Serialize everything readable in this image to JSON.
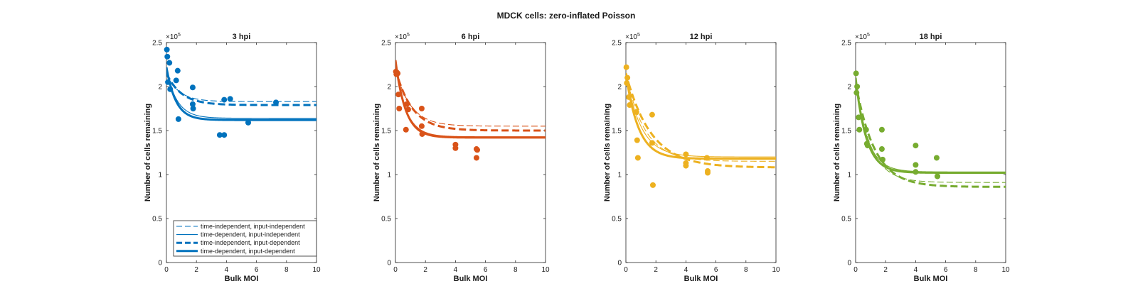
{
  "figure": {
    "title": "MDCK cells: zero-inflated Poisson",
    "exponent_label": "×10",
    "exponent_power": "5"
  },
  "legend": {
    "location": "inside lower-left of first panel",
    "entries": [
      {
        "label": "time-independent, input-independent",
        "style": "thin-dashed"
      },
      {
        "label": "time-dependent, input-independent",
        "style": "thin-solid"
      },
      {
        "label": "time-independent, input-dependent",
        "style": "thick-dashed"
      },
      {
        "label": "time-dependent, input-dependent",
        "style": "thick-solid"
      }
    ]
  },
  "chart_data": [
    {
      "type": "scatter",
      "title": "3 hpi",
      "xlabel": "Bulk MOI",
      "ylabel": "Number of cells remaining",
      "xlim": [
        0,
        10
      ],
      "ylim": [
        0,
        2.5
      ],
      "y_multiplier": "1e5",
      "xticks": [
        0,
        2,
        4,
        6,
        8,
        10
      ],
      "yticks": [
        0,
        0.5,
        1,
        1.5,
        2,
        2.5
      ],
      "grid": false,
      "color": "#0072BD",
      "points": [
        [
          0.03,
          2.42
        ],
        [
          0.06,
          2.34
        ],
        [
          0.1,
          2.05
        ],
        [
          0.2,
          2.27
        ],
        [
          0.25,
          1.97
        ],
        [
          0.65,
          2.07
        ],
        [
          0.75,
          2.18
        ],
        [
          0.8,
          1.63
        ],
        [
          1.75,
          1.99
        ],
        [
          1.75,
          1.8
        ],
        [
          1.78,
          1.75
        ],
        [
          3.55,
          1.45
        ],
        [
          3.85,
          1.45
        ],
        [
          3.85,
          1.85
        ],
        [
          4.25,
          1.86
        ],
        [
          5.45,
          1.59
        ],
        [
          7.3,
          1.82
        ]
      ],
      "series": [
        {
          "name": "time-independent, input-independent",
          "style": "thin-dashed",
          "y0": 2.15,
          "yinf": 1.83,
          "k": 1.2
        },
        {
          "name": "time-dependent, input-independent",
          "style": "thin-solid",
          "y0": 2.19,
          "yinf": 1.64,
          "k": 1.4
        },
        {
          "name": "time-independent, input-dependent",
          "style": "thick-dashed",
          "y0": 2.15,
          "yinf": 1.79,
          "k": 1.0
        },
        {
          "name": "time-dependent, input-dependent",
          "style": "thick-solid",
          "y0": 2.22,
          "yinf": 1.62,
          "k": 1.6
        }
      ]
    },
    {
      "type": "scatter",
      "title": "6 hpi",
      "xlabel": "Bulk MOI",
      "ylabel": "Number of cells remaining",
      "xlim": [
        0,
        10
      ],
      "ylim": [
        0,
        2.5
      ],
      "y_multiplier": "1e5",
      "xticks": [
        0,
        2,
        4,
        6,
        8,
        10
      ],
      "yticks": [
        0,
        0.5,
        1,
        1.5,
        2,
        2.5
      ],
      "grid": false,
      "color": "#D95319",
      "points": [
        [
          0.03,
          2.17
        ],
        [
          0.06,
          2.14
        ],
        [
          0.1,
          2.16
        ],
        [
          0.15,
          2.15
        ],
        [
          0.2,
          1.91
        ],
        [
          0.25,
          1.75
        ],
        [
          0.7,
          1.51
        ],
        [
          0.75,
          1.8
        ],
        [
          0.85,
          1.74
        ],
        [
          1.75,
          1.75
        ],
        [
          1.75,
          1.55
        ],
        [
          1.78,
          1.46
        ],
        [
          4.0,
          1.34
        ],
        [
          4.0,
          1.3
        ],
        [
          5.4,
          1.29
        ],
        [
          5.4,
          1.19
        ],
        [
          5.45,
          1.28
        ]
      ],
      "series": [
        {
          "name": "time-independent, input-independent",
          "style": "thin-dashed",
          "y0": 2.2,
          "yinf": 1.55,
          "k": 1.0
        },
        {
          "name": "time-dependent, input-independent",
          "style": "thin-solid",
          "y0": 2.25,
          "yinf": 1.43,
          "k": 1.4
        },
        {
          "name": "time-independent, input-dependent",
          "style": "thick-dashed",
          "y0": 2.2,
          "yinf": 1.5,
          "k": 0.9
        },
        {
          "name": "time-dependent, input-dependent",
          "style": "thick-solid",
          "y0": 2.3,
          "yinf": 1.42,
          "k": 1.5
        }
      ]
    },
    {
      "type": "scatter",
      "title": "12 hpi",
      "xlabel": "Bulk MOI",
      "ylabel": "Number of cells remaining",
      "xlim": [
        0,
        10
      ],
      "ylim": [
        0,
        2.5
      ],
      "y_multiplier": "1e5",
      "xticks": [
        0,
        2,
        4,
        6,
        8,
        10
      ],
      "yticks": [
        0,
        0.5,
        1,
        1.5,
        2,
        2.5
      ],
      "grid": false,
      "color": "#EDB120",
      "points": [
        [
          0.03,
          2.22
        ],
        [
          0.06,
          2.04
        ],
        [
          0.1,
          2.1
        ],
        [
          0.2,
          1.88
        ],
        [
          0.25,
          1.79
        ],
        [
          0.7,
          1.71
        ],
        [
          0.75,
          1.39
        ],
        [
          0.8,
          1.19
        ],
        [
          1.75,
          1.68
        ],
        [
          1.75,
          1.36
        ],
        [
          1.8,
          0.88
        ],
        [
          4.0,
          1.23
        ],
        [
          4.0,
          1.13
        ],
        [
          4.0,
          1.1
        ],
        [
          5.4,
          1.19
        ],
        [
          5.45,
          1.04
        ],
        [
          5.45,
          1.02
        ]
      ],
      "series": [
        {
          "name": "time-independent, input-independent",
          "style": "thin-dashed",
          "y0": 2.15,
          "yinf": 1.15,
          "k": 0.8
        },
        {
          "name": "time-dependent, input-independent",
          "style": "thin-solid",
          "y0": 2.15,
          "yinf": 1.2,
          "k": 1.0
        },
        {
          "name": "time-independent, input-dependent",
          "style": "thick-dashed",
          "y0": 2.15,
          "yinf": 1.08,
          "k": 0.6
        },
        {
          "name": "time-dependent, input-dependent",
          "style": "thick-solid",
          "y0": 2.15,
          "yinf": 1.18,
          "k": 1.2
        }
      ]
    },
    {
      "type": "scatter",
      "title": "18 hpi",
      "xlabel": "Bulk MOI",
      "ylabel": "Number of cells remaining",
      "xlim": [
        0,
        10
      ],
      "ylim": [
        0,
        2.5
      ],
      "y_multiplier": "1e5",
      "xticks": [
        0,
        2,
        4,
        6,
        8,
        10
      ],
      "yticks": [
        0,
        0.5,
        1,
        1.5,
        2,
        2.5
      ],
      "grid": false,
      "color": "#77AC30",
      "points": [
        [
          0.03,
          2.15
        ],
        [
          0.06,
          1.93
        ],
        [
          0.1,
          2.0
        ],
        [
          0.2,
          1.65
        ],
        [
          0.25,
          1.51
        ],
        [
          0.7,
          1.51
        ],
        [
          0.75,
          1.35
        ],
        [
          0.8,
          1.33
        ],
        [
          1.75,
          1.51
        ],
        [
          1.75,
          1.29
        ],
        [
          1.8,
          1.17
        ],
        [
          4.0,
          1.33
        ],
        [
          4.0,
          1.11
        ],
        [
          4.0,
          1.03
        ],
        [
          5.4,
          1.19
        ],
        [
          5.45,
          0.98
        ],
        [
          5.45,
          0.98
        ]
      ],
      "series": [
        {
          "name": "time-independent, input-independent",
          "style": "thin-dashed",
          "y0": 2.05,
          "yinf": 0.91,
          "k": 1.0
        },
        {
          "name": "time-dependent, input-independent",
          "style": "thin-solid",
          "y0": 2.1,
          "yinf": 1.03,
          "k": 1.3
        },
        {
          "name": "time-independent, input-dependent",
          "style": "thick-dashed",
          "y0": 2.05,
          "yinf": 0.86,
          "k": 0.8
        },
        {
          "name": "time-dependent, input-dependent",
          "style": "thick-solid",
          "y0": 2.1,
          "yinf": 1.02,
          "k": 1.4
        }
      ]
    }
  ]
}
